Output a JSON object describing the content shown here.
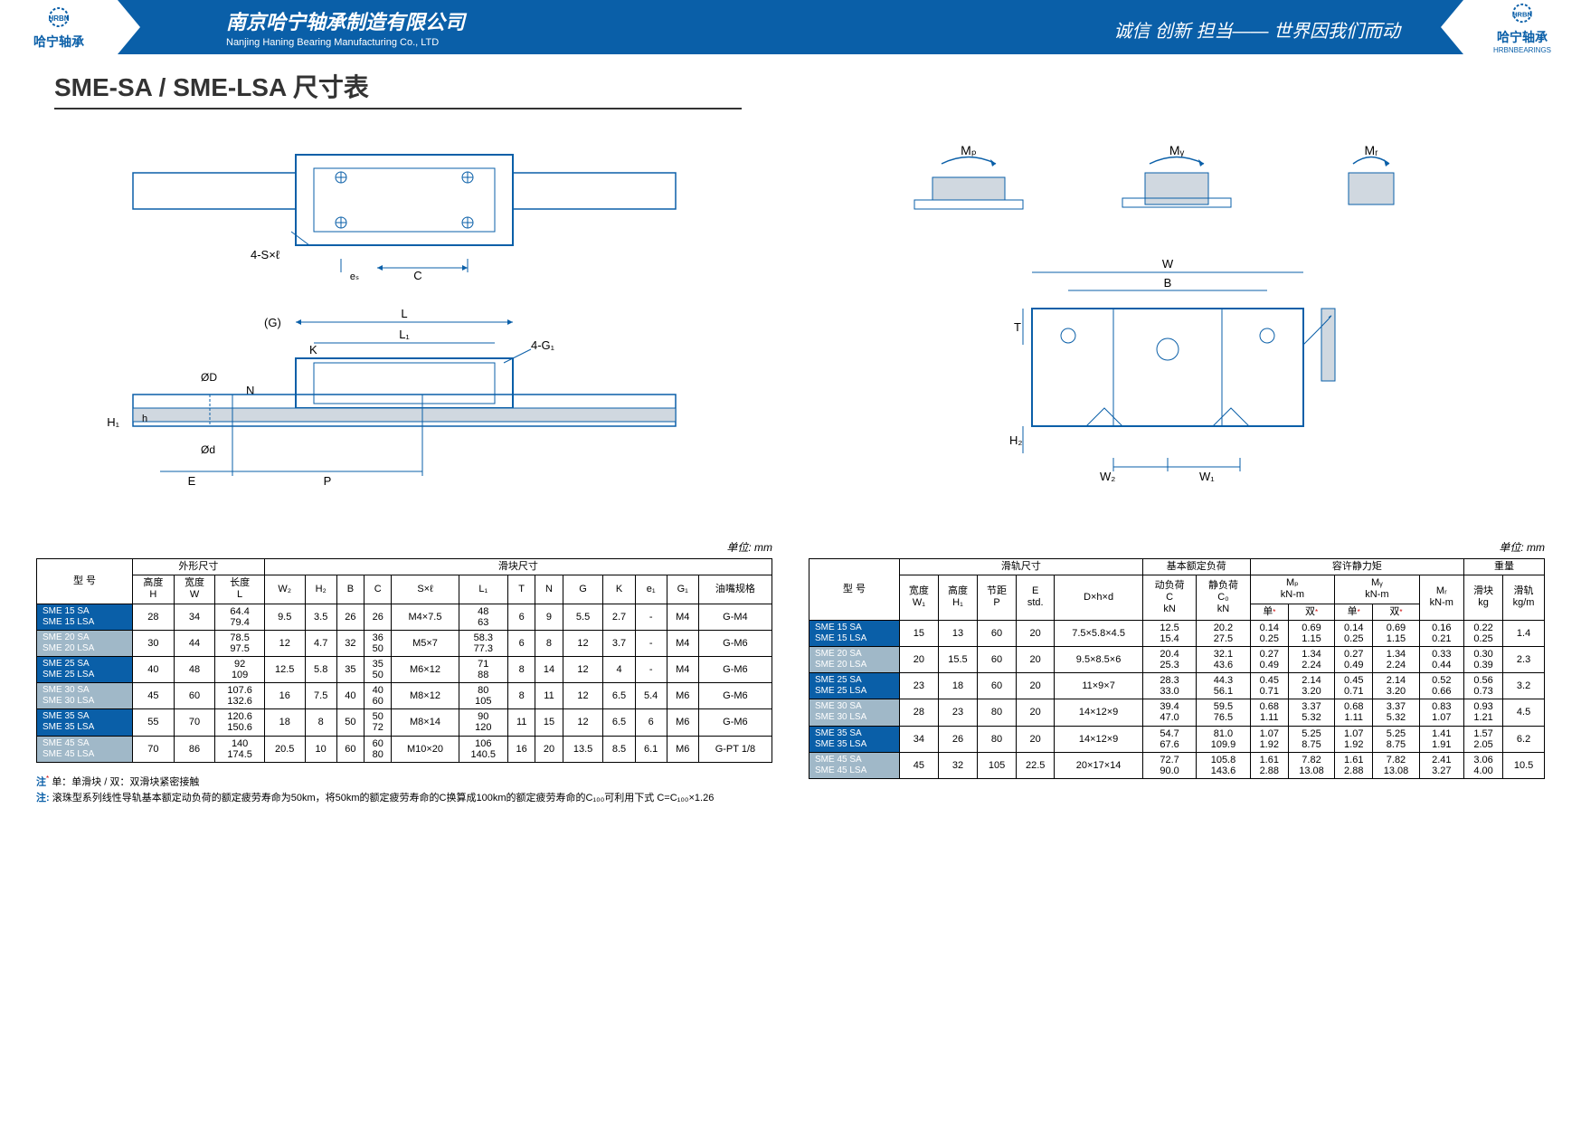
{
  "header": {
    "logo_cn": "哈宁轴承",
    "logo_en": "HRBNBEARINGS",
    "logo_brand": "HRBN",
    "company_cn": "南京哈宁轴承制造有限公司",
    "company_en": "Nanjing Haning Bearing Manufacturing Co., LTD",
    "slogan": "诚信 创新 担当—— 世界因我们而动"
  },
  "title": "SME-SA / SME-LSA 尺寸表",
  "unit_label": "单位: mm",
  "diagram_labels": {
    "mp": "Mₚ",
    "my": "Mᵧ",
    "mr": "Mᵣ",
    "w": "W",
    "b": "B",
    "t": "T",
    "h2": "H₂",
    "w2": "W₂",
    "w1": "W₁",
    "g": "(G)",
    "l": "L",
    "k": "K",
    "l1": "L₁",
    "fourg1": "4-G₁",
    "n": "N",
    "h1": "H₁",
    "h": "h",
    "od": "ØD",
    "od2": "Ød",
    "e": "E",
    "p": "P",
    "foursl": "4-S×ℓ",
    "e_sub": "eₛ",
    "c": "C"
  },
  "left_table": {
    "group_headers": [
      "型 号",
      "外形尺寸",
      "滑块尺寸"
    ],
    "headers": [
      "高度\nH",
      "宽度\nW",
      "长度\nL",
      "W₂",
      "H₂",
      "B",
      "C",
      "S×ℓ",
      "L₁",
      "T",
      "N",
      "G",
      "K",
      "e₁",
      "G₁",
      "油嘴规格"
    ],
    "rows": [
      {
        "model": "SME 15 SA\nSME 15 LSA",
        "cls": "model-cell",
        "cells": [
          "28",
          "34",
          "64.4\n79.4",
          "9.5",
          "3.5",
          "26",
          "26",
          "M4×7.5",
          "48\n63",
          "6",
          "9",
          "5.5",
          "2.7",
          "-",
          "M4",
          "G-M4"
        ]
      },
      {
        "model": "SME 20 SA\nSME 20 LSA",
        "cls": "model-cell-gray",
        "cells": [
          "30",
          "44",
          "78.5\n97.5",
          "12",
          "4.7",
          "32",
          "36\n50",
          "M5×7",
          "58.3\n77.3",
          "6",
          "8",
          "12",
          "3.7",
          "-",
          "M4",
          "G-M6"
        ]
      },
      {
        "model": "SME 25 SA\nSME 25 LSA",
        "cls": "model-cell",
        "cells": [
          "40",
          "48",
          "92\n109",
          "12.5",
          "5.8",
          "35",
          "35\n50",
          "M6×12",
          "71\n88",
          "8",
          "14",
          "12",
          "4",
          "-",
          "M4",
          "G-M6"
        ]
      },
      {
        "model": "SME 30 SA\nSME 30 LSA",
        "cls": "model-cell-gray",
        "cells": [
          "45",
          "60",
          "107.6\n132.6",
          "16",
          "7.5",
          "40",
          "40\n60",
          "M8×12",
          "80\n105",
          "8",
          "11",
          "12",
          "6.5",
          "5.4",
          "M6",
          "G-M6"
        ]
      },
      {
        "model": "SME 35 SA\nSME 35 LSA",
        "cls": "model-cell",
        "cells": [
          "55",
          "70",
          "120.6\n150.6",
          "18",
          "8",
          "50",
          "50\n72",
          "M8×14",
          "90\n120",
          "11",
          "15",
          "12",
          "6.5",
          "6",
          "M6",
          "G-M6"
        ]
      },
      {
        "model": "SME 45 SA\nSME 45 LSA",
        "cls": "model-cell-gray",
        "cells": [
          "70",
          "86",
          "140\n174.5",
          "20.5",
          "10",
          "60",
          "60\n80",
          "M10×20",
          "106\n140.5",
          "16",
          "20",
          "13.5",
          "8.5",
          "6.1",
          "M6",
          "G-PT 1/8"
        ]
      }
    ]
  },
  "right_table": {
    "group_headers": [
      "型 号",
      "滑轨尺寸",
      "基本额定负荷",
      "容许静力矩",
      "重量"
    ],
    "sub_headers1": [
      "宽度\nW₁",
      "高度\nH₁",
      "节距\nP",
      "E\nstd.",
      "D×h×d",
      "动负荷\nC\nkN",
      "静负荷\nC₀\nkN",
      "Mₚ\nkN-m",
      "Mᵧ\nkN-m",
      "Mᵣ\nkN-m",
      "滑块\nkg",
      "滑轨\nkg/m"
    ],
    "sub_headers2": [
      "单",
      "双",
      "单",
      "双"
    ],
    "rows": [
      {
        "model": "SME 15 SA\nSME 15 LSA",
        "cls": "model-cell",
        "cells": [
          "15",
          "13",
          "60",
          "20",
          "7.5×5.8×4.5",
          "12.5\n15.4",
          "20.2\n27.5",
          "0.14\n0.25",
          "0.69\n1.15",
          "0.14\n0.25",
          "0.69\n1.15",
          "0.16\n0.21",
          "0.22\n0.25",
          "1.4"
        ]
      },
      {
        "model": "SME 20 SA\nSME 20 LSA",
        "cls": "model-cell-gray",
        "cells": [
          "20",
          "15.5",
          "60",
          "20",
          "9.5×8.5×6",
          "20.4\n25.3",
          "32.1\n43.6",
          "0.27\n0.49",
          "1.34\n2.24",
          "0.27\n0.49",
          "1.34\n2.24",
          "0.33\n0.44",
          "0.30\n0.39",
          "2.3"
        ]
      },
      {
        "model": "SME 25 SA\nSME 25 LSA",
        "cls": "model-cell",
        "cells": [
          "23",
          "18",
          "60",
          "20",
          "11×9×7",
          "28.3\n33.0",
          "44.3\n56.1",
          "0.45\n0.71",
          "2.14\n3.20",
          "0.45\n0.71",
          "2.14\n3.20",
          "0.52\n0.66",
          "0.56\n0.73",
          "3.2"
        ]
      },
      {
        "model": "SME 30 SA\nSME 30 LSA",
        "cls": "model-cell-gray",
        "cells": [
          "28",
          "23",
          "80",
          "20",
          "14×12×9",
          "39.4\n47.0",
          "59.5\n76.5",
          "0.68\n1.11",
          "3.37\n5.32",
          "0.68\n1.11",
          "3.37\n5.32",
          "0.83\n1.07",
          "0.93\n1.21",
          "4.5"
        ]
      },
      {
        "model": "SME 35 SA\nSME 35 LSA",
        "cls": "model-cell",
        "cells": [
          "34",
          "26",
          "80",
          "20",
          "14×12×9",
          "54.7\n67.6",
          "81.0\n109.9",
          "1.07\n1.92",
          "5.25\n8.75",
          "1.07\n1.92",
          "5.25\n8.75",
          "1.41\n1.91",
          "1.57\n2.05",
          "6.2"
        ]
      },
      {
        "model": "SME 45 SA\nSME 45 LSA",
        "cls": "model-cell-gray",
        "cells": [
          "45",
          "32",
          "105",
          "22.5",
          "20×17×14",
          "72.7\n90.0",
          "105.8\n143.6",
          "1.61\n2.88",
          "7.82\n13.08",
          "1.61\n2.88",
          "7.82\n13.08",
          "2.41\n3.27",
          "3.06\n4.00",
          "10.5"
        ]
      }
    ]
  },
  "notes": {
    "note1_label": "注",
    "note1_sup": "*",
    "note1": "单：单滑块 / 双：双滑块紧密接触",
    "note2_label": "注:",
    "note2": "滚珠型系列线性导轨基本额定动负荷的额定疲劳寿命为50km，将50km的额定疲劳寿命的C换算成100km的额定疲劳寿命的C₁₀₀可利用下式 C=C₁₀₀×1.26"
  }
}
